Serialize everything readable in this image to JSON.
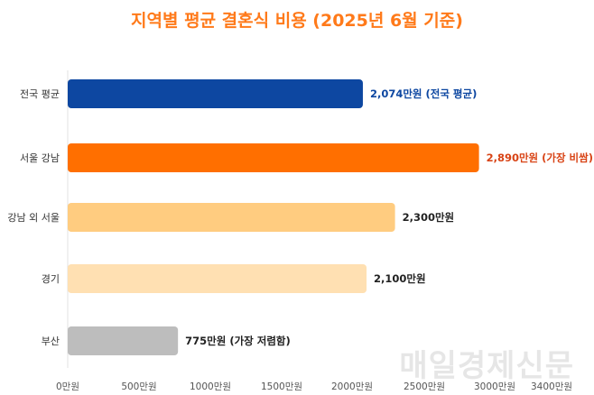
{
  "chart_data": {
    "type": "bar",
    "orientation": "horizontal",
    "title": "지역별 평균 결혼식 비용 (2025년 6월 기준)",
    "xlabel": "",
    "ylabel": "",
    "xlim": [
      0,
      3400
    ],
    "x_ticks": [
      0,
      500,
      1000,
      1500,
      2000,
      2500,
      3000,
      3400
    ],
    "x_tick_labels": [
      "0만원",
      "500만원",
      "1000만원",
      "1500만원",
      "2000만원",
      "2500만원",
      "3000만원",
      "3400만원"
    ],
    "categories": [
      "전국 평균",
      "서울 강남",
      "강남 외 서울",
      "경기",
      "부산"
    ],
    "values": [
      2074,
      2890,
      2300,
      2100,
      775
    ],
    "data_labels": [
      "2,074만원 (전국 평균)",
      "2,890만원 (가장 비쌈)",
      "2,300만원",
      "2,100만원",
      "775만원 (가장 저렴함)"
    ],
    "bar_colors": [
      "#0d47a1",
      "#ff6f00",
      "#ffcc80",
      "#ffe0b2",
      "#bdbdbd"
    ],
    "label_colors": [
      "#0d47a1",
      "#d84315",
      "#222222",
      "#222222",
      "#222222"
    ],
    "grid": false,
    "legend": "none"
  },
  "watermark": "매일경제신문"
}
